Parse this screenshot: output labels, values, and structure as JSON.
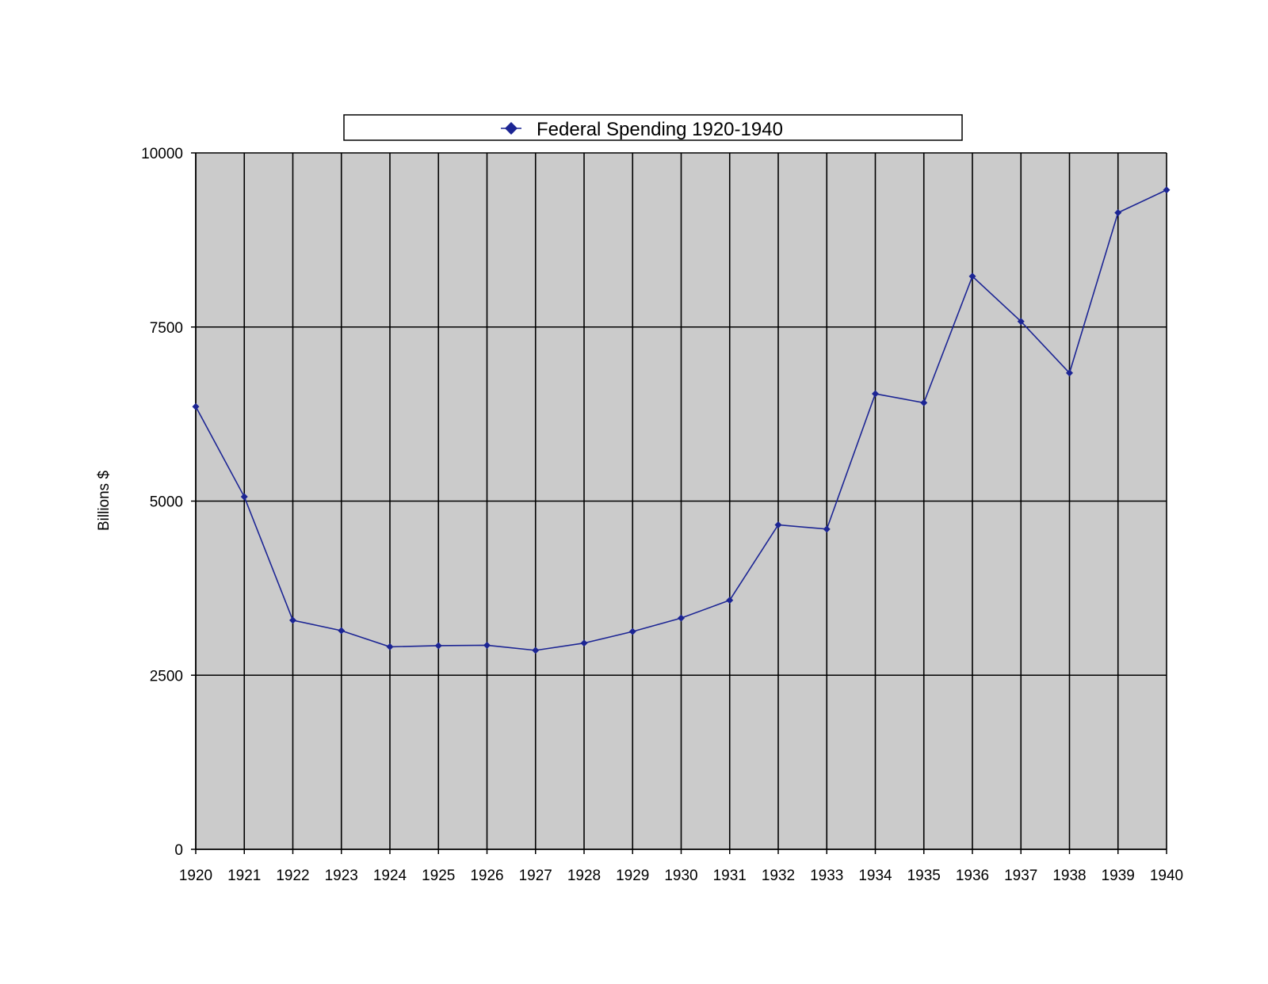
{
  "chart_data": {
    "type": "line",
    "ylabel": "Billions $",
    "xlabel": "",
    "ylim": [
      0,
      10000
    ],
    "yticks": [
      0,
      2500,
      5000,
      7500,
      10000
    ],
    "x": [
      1920,
      1921,
      1922,
      1923,
      1924,
      1925,
      1926,
      1927,
      1928,
      1929,
      1930,
      1931,
      1932,
      1933,
      1934,
      1935,
      1936,
      1937,
      1938,
      1939,
      1940
    ],
    "x_tick_labels": [
      "1920",
      "1921",
      "1922",
      "1923",
      "1924",
      "1925",
      "1926",
      "1927",
      "1928",
      "1929",
      "1930",
      "1931",
      "1932",
      "1933",
      "1934",
      "1935",
      "1936",
      "1937",
      "1938",
      "1939",
      "1940"
    ],
    "series": [
      {
        "name": "Federal Spending 1920-1940",
        "marker": "diamond",
        "values": [
          6357,
          5062,
          3289,
          3140,
          2908,
          2924,
          2930,
          2857,
          2961,
          3127,
          3320,
          3577,
          4659,
          4598,
          6541,
          6412,
          8228,
          7580,
          6840,
          9141,
          9468
        ]
      }
    ],
    "grid": true,
    "legend_position": "top-center",
    "colors": {
      "series": "#1c2594",
      "plot_background": "#cbcbcb",
      "grid": "#000000"
    }
  }
}
